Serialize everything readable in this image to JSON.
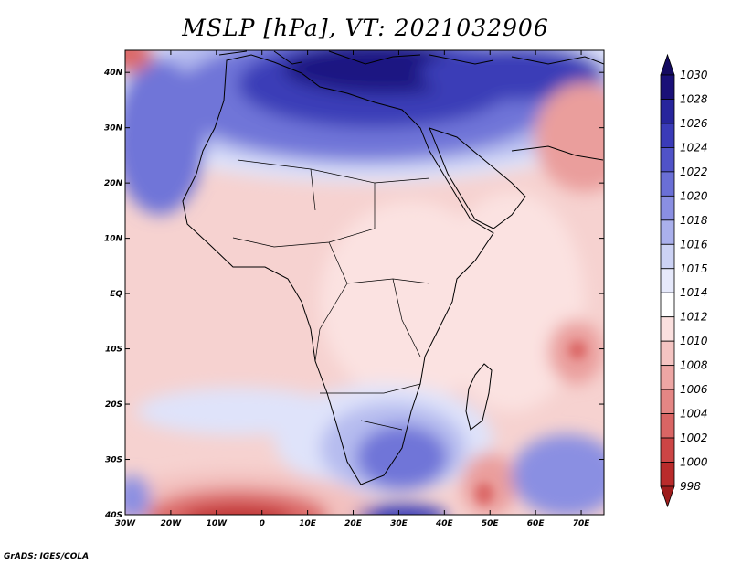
{
  "title": "MSLP [hPa], VT: 2021032906",
  "credit": "GrADS: IGES/COLA",
  "axes": {
    "lon_labels": [
      "30W",
      "20W",
      "10W",
      "0",
      "10E",
      "20E",
      "30E",
      "40E",
      "50E",
      "60E",
      "70E"
    ],
    "lat_labels": [
      "40N",
      "30N",
      "20N",
      "10N",
      "EQ",
      "10S",
      "20S",
      "30S",
      "40S"
    ]
  },
  "colorbar": {
    "labels": [
      "1030",
      "1028",
      "1026",
      "1024",
      "1022",
      "1020",
      "1018",
      "1016",
      "1015",
      "1014",
      "1012",
      "1010",
      "1008",
      "1006",
      "1004",
      "1002",
      "1000",
      "998"
    ],
    "colors": [
      "#1a1078",
      "#27259c",
      "#3a3bb8",
      "#5053c8",
      "#6a6fd6",
      "#8a8fe2",
      "#aab0ec",
      "#ccd2f4",
      "#e6e9fb",
      "#ffffff",
      "#fbe0df",
      "#f4c4c2",
      "#eda6a4",
      "#e48684",
      "#d96564",
      "#cc4545",
      "#b92b2b"
    ],
    "top_arrow_color": "#140a60",
    "bottom_arrow_color": "#9e1c1c"
  },
  "field_colors": {
    "very_high": "#1e1482",
    "high": "#3b3cb7",
    "mid_high": "#6f74d8",
    "light_high": "#b6bcef",
    "pale_high": "#dfe3fa",
    "neutral": "#ffffff",
    "pale_low": "#fbe2e1",
    "light_low": "#f3c1bf",
    "mid_low": "#ea9e9c",
    "low": "#dc6a69",
    "very_low": "#c03232"
  }
}
